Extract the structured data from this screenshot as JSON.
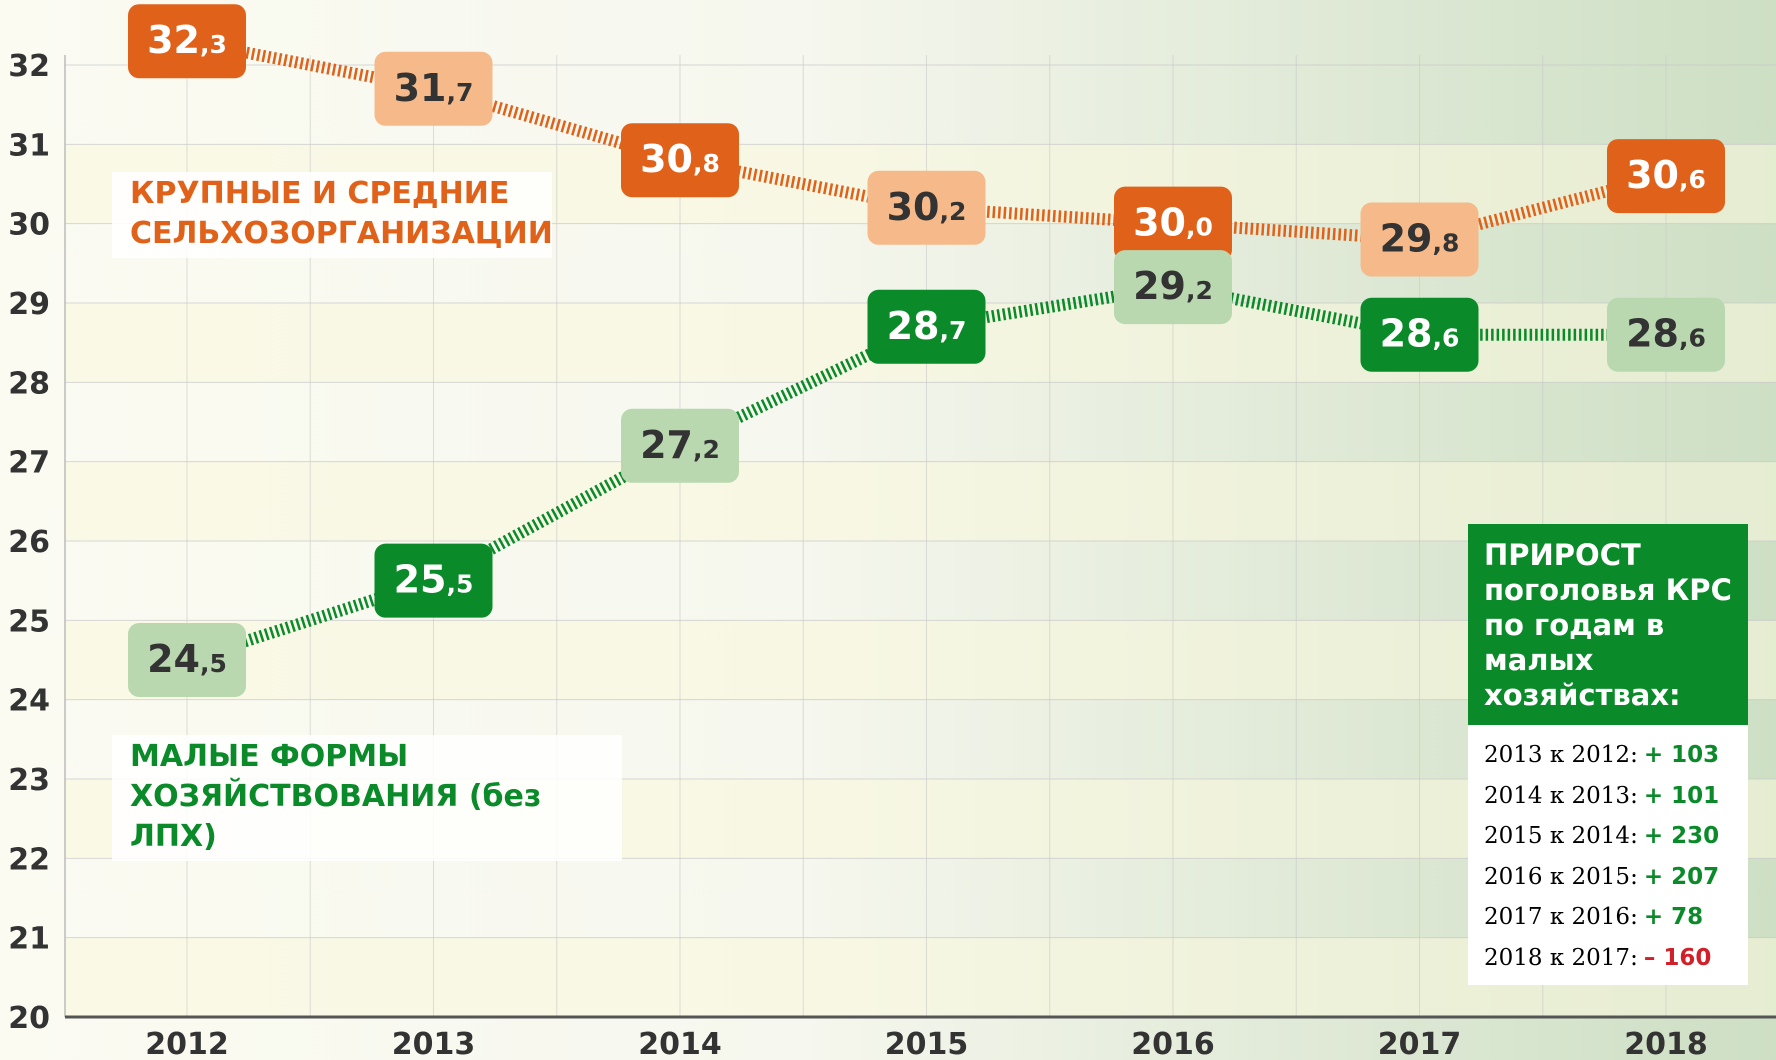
{
  "chart_data": {
    "type": "line",
    "categories": [
      "2012",
      "2013",
      "2014",
      "2015",
      "2016",
      "2017",
      "2018"
    ],
    "series": [
      {
        "name": "КРУПНЫЕ И СРЕДНИЕ СЕЛЬХОЗОРГАНИЗАЦИИ",
        "color": "#e0621a",
        "values": [
          32.3,
          31.7,
          30.8,
          30.2,
          30.0,
          29.8,
          30.6
        ],
        "value_labels": [
          "32,3",
          "31,7",
          "30,8",
          "30,2",
          "30,0",
          "29,8",
          "30,6"
        ],
        "label_colors": [
          "#e0621a",
          "#f5b98a",
          "#e0621a",
          "#f5b98a",
          "#e0621a",
          "#f5b98a",
          "#e0621a"
        ]
      },
      {
        "name": "МАЛЫЕ ФОРМЫ ХОЗЯЙСТВОВАНИЯ (без ЛПХ)",
        "color": "#0b8a2a",
        "values": [
          24.5,
          25.5,
          27.2,
          28.7,
          29.2,
          28.6,
          28.6
        ],
        "value_labels": [
          "24,5",
          "25,5",
          "27,2",
          "28,7",
          "29,2",
          "28,6",
          "28,6"
        ],
        "label_colors": [
          "#b9d8b0",
          "#0b8a2a",
          "#b9d8b0",
          "#0b8a2a",
          "#b9d8b0",
          "#0b8a2a",
          "#b9d8b0"
        ]
      }
    ],
    "ylim": [
      20,
      32
    ],
    "yticks": [
      20,
      21,
      22,
      23,
      24,
      25,
      26,
      27,
      28,
      29,
      30,
      31,
      32
    ],
    "grid": true,
    "annotation": {
      "title": "ПРИРОСТ поголовья КРС по годам в малых хозяйствах:",
      "rows": [
        {
          "label": "2013 к 2012:",
          "value": "+ 103",
          "color": "#0b8a2a"
        },
        {
          "label": "2014 к 2013:",
          "value": "+ 101",
          "color": "#0b8a2a"
        },
        {
          "label": "2015 к 2014:",
          "value": "+ 230",
          "color": "#0b8a2a"
        },
        {
          "label": "2016 к 2015:",
          "value": "+ 207",
          "color": "#0b8a2a"
        },
        {
          "label": "2017 к 2016:",
          "value": "+ 78",
          "color": "#0b8a2a"
        },
        {
          "label": "2018 к 2017:",
          "value": "– 160",
          "color": "#d0202a"
        }
      ]
    }
  }
}
